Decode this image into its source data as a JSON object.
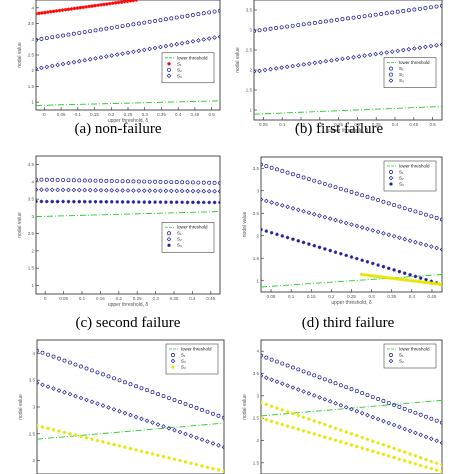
{
  "chart_data": [
    {
      "type": "scatter",
      "caption": "(a)  non-failure",
      "xlabel": "upper threshold, δ",
      "ylabel": "nodal value",
      "xticks": [
        "0",
        "0.05",
        "0.1",
        "0.15",
        "0.2",
        "0.25",
        "0.3",
        "0.35",
        "0.4",
        "0.45",
        "0.5"
      ],
      "yticks": [
        "1",
        "1.5",
        "2",
        "2.5",
        "3",
        "3.5",
        "4"
      ],
      "xlim": [
        0,
        0.55
      ],
      "ylim": [
        0.7,
        4.3
      ],
      "legend": {
        "position": "center-right",
        "entries": [
          "lower threshold",
          "S₁",
          "S₂",
          "S₃"
        ]
      },
      "series": [
        {
          "name": "lower threshold",
          "style": "dash",
          "color": "#22cc22",
          "x": [
            0,
            0.55
          ],
          "y": [
            0.85,
            1.0
          ]
        },
        {
          "name": "S₁",
          "style": "star",
          "color": "#ff0000",
          "x": [
            0,
            0.3
          ],
          "y": [
            3.85,
            4.3
          ]
        },
        {
          "name": "S₂",
          "style": "circle",
          "color": "#1c1c9c",
          "x": [
            0,
            0.55
          ],
          "y": [
            3.0,
            3.95
          ]
        },
        {
          "name": "S₃",
          "style": "diamond",
          "color": "#1c1c9c",
          "x": [
            0,
            0.55
          ],
          "y": [
            2.05,
            3.1
          ]
        }
      ]
    },
    {
      "type": "scatter",
      "caption": "(b)  first failure",
      "xlabel": "upper threshold, δ",
      "ylabel": "nodal value",
      "xticks": [
        "0.05",
        "0.1",
        "0.15",
        "0.2",
        "0.25",
        "0.3",
        "0.35",
        "0.4",
        "0.45",
        "0.5"
      ],
      "yticks": [
        "1",
        "1.5",
        "2",
        "2.5",
        "3",
        "3.5"
      ],
      "xlim": [
        0.05,
        0.55
      ],
      "ylim": [
        0.7,
        3.8
      ],
      "legend": {
        "position": "center-right",
        "entries": [
          "lower threshold",
          "S₁",
          "S₂",
          "S₃"
        ]
      },
      "series": [
        {
          "name": "lower threshold",
          "style": "dash",
          "color": "#22cc22",
          "x": [
            0.05,
            0.55
          ],
          "y": [
            0.85,
            1.05
          ]
        },
        {
          "name": "S₂",
          "style": "circle",
          "color": "#1c1c9c",
          "x": [
            0.05,
            0.55
          ],
          "y": [
            3.0,
            3.65
          ]
        },
        {
          "name": "S₃",
          "style": "diamond",
          "color": "#1c1c9c",
          "x": [
            0.05,
            0.55
          ],
          "y": [
            1.95,
            2.65
          ]
        }
      ]
    },
    {
      "type": "scatter",
      "caption": "(c)  second failure",
      "xlabel": "upper threshold, δ",
      "ylabel": "nodal value",
      "xticks": [
        "0",
        "0.05",
        "0.1",
        "0.15",
        "0.2",
        "0.25",
        "0.3",
        "0.35",
        "0.4",
        "0.45"
      ],
      "yticks": [
        "1",
        "1.5",
        "2",
        "2.5",
        "3",
        "3.5",
        "4",
        "4.5"
      ],
      "xlim": [
        0,
        0.5
      ],
      "ylim": [
        0.7,
        4.8
      ],
      "legend": {
        "position": "center-right",
        "entries": [
          "lower threshold",
          "S₁",
          "S₂",
          "S₃"
        ]
      },
      "series": [
        {
          "name": "lower threshold",
          "style": "dash",
          "color": "#22cc22",
          "x": [
            0,
            0.5
          ],
          "y": [
            3.0,
            3.15
          ]
        },
        {
          "name": "S₁",
          "style": "circle",
          "color": "#1c1c9c",
          "x": [
            0,
            0.5
          ],
          "y": [
            4.1,
            4.0
          ]
        },
        {
          "name": "S₂",
          "style": "diamond",
          "color": "#1c1c9c",
          "x": [
            0,
            0.5
          ],
          "y": [
            3.8,
            3.75
          ]
        },
        {
          "name": "S₃",
          "style": "star",
          "color": "#1c1c9c",
          "x": [
            0,
            0.5
          ],
          "y": [
            3.45,
            3.42
          ]
        }
      ]
    },
    {
      "type": "scatter",
      "caption": "(d)  third failure",
      "xlabel": "upper threshold, δ",
      "ylabel": "nodal value",
      "xticks": [
        "0.05",
        "0.1",
        "0.15",
        "0.2",
        "0.25",
        "0.3",
        "0.35",
        "0.4",
        "0.45"
      ],
      "yticks": [
        "1",
        "1.5",
        "2",
        "2.5",
        "3",
        "3.5"
      ],
      "xlim": [
        0.05,
        0.5
      ],
      "ylim": [
        0.9,
        3.6
      ],
      "legend": {
        "position": "top-right",
        "entries": [
          "lower threshold",
          "S₁",
          "S₂",
          "S₃"
        ]
      },
      "series": [
        {
          "name": "lower threshold",
          "style": "dash",
          "color": "#22cc22",
          "x": [
            0.05,
            0.5
          ],
          "y": [
            1.0,
            1.25
          ]
        },
        {
          "name": "S₁",
          "style": "circle",
          "color": "#1c1c9c",
          "x": [
            0.05,
            0.5
          ],
          "y": [
            3.45,
            2.35
          ]
        },
        {
          "name": "S₂",
          "style": "diamond",
          "color": "#1c1c9c",
          "x": [
            0.05,
            0.5
          ],
          "y": [
            2.75,
            1.75
          ]
        },
        {
          "name": "S₃",
          "style": "star",
          "color": "#1c1c9c",
          "x": [
            0.05,
            0.5
          ],
          "y": [
            2.15,
            1.05
          ]
        },
        {
          "name": "S₄",
          "style": "star",
          "color": "#e6e600",
          "x": [
            0.3,
            0.5
          ],
          "y": [
            1.25,
            1.05
          ]
        }
      ]
    },
    {
      "type": "scatter",
      "caption": "",
      "xlabel": "",
      "ylabel": "nodal value",
      "xticks": [],
      "yticks": [
        "2",
        "2.5",
        "3",
        "3.5",
        "4"
      ],
      "xlim": [
        0.05,
        0.5
      ],
      "ylim": [
        1.8,
        4.3
      ],
      "legend": {
        "position": "top-right",
        "entries": [
          "lower threshold",
          "S₁",
          "S₂",
          "S₃"
        ]
      },
      "series": [
        {
          "name": "lower threshold",
          "style": "dash",
          "color": "#22cc22",
          "x": [
            0.05,
            0.5
          ],
          "y": [
            2.45,
            2.75
          ]
        },
        {
          "name": "S₁",
          "style": "circle",
          "color": "#1c1c9c",
          "x": [
            0.05,
            0.5
          ],
          "y": [
            4.1,
            2.85
          ]
        },
        {
          "name": "S₂",
          "style": "diamond",
          "color": "#1c1c9c",
          "x": [
            0.05,
            0.5
          ],
          "y": [
            3.5,
            2.3
          ]
        },
        {
          "name": "S₃",
          "style": "star",
          "color": "#e6e600",
          "x": [
            0.05,
            0.5
          ],
          "y": [
            2.7,
            1.85
          ]
        }
      ]
    },
    {
      "type": "scatter",
      "caption": "",
      "xlabel": "",
      "ylabel": "nodal value",
      "xticks": [],
      "yticks": [
        "1.5",
        "2",
        "2.5",
        "3",
        "3.5",
        "4"
      ],
      "xlim": [
        0.05,
        0.5
      ],
      "ylim": [
        1.3,
        4.3
      ],
      "legend": {
        "position": "top-right",
        "entries": [
          "lower threshold",
          "S₁",
          "S₂"
        ]
      },
      "series": [
        {
          "name": "lower threshold",
          "style": "dash",
          "color": "#22cc22",
          "x": [
            0.05,
            0.5
          ],
          "y": [
            2.6,
            2.95
          ]
        },
        {
          "name": "S₁",
          "style": "circle",
          "color": "#1c1c9c",
          "x": [
            0.05,
            0.5
          ],
          "y": [
            3.95,
            2.45
          ]
        },
        {
          "name": "S₂",
          "style": "diamond",
          "color": "#1c1c9c",
          "x": [
            0.05,
            0.5
          ],
          "y": [
            3.5,
            2.0
          ]
        },
        {
          "name": "S₃",
          "style": "star",
          "color": "#e6e600",
          "x": [
            0.05,
            0.5
          ],
          "y": [
            2.9,
            1.5
          ]
        },
        {
          "name": "S₄",
          "style": "star",
          "color": "#e6e600",
          "x": [
            0.05,
            0.5
          ],
          "y": [
            2.55,
            1.35
          ]
        }
      ]
    }
  ]
}
